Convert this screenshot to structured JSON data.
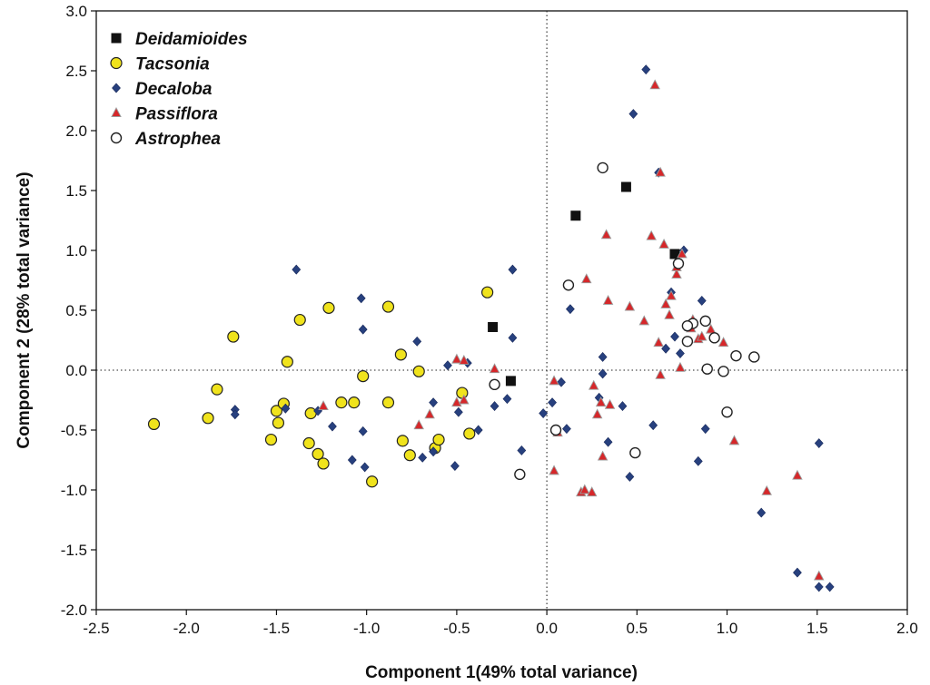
{
  "chart_data": {
    "type": "scatter",
    "xlabel": "Component 1(49% total variance)",
    "ylabel": "Component 2 (28% total variance)",
    "xlim": [
      -2.5,
      2.0
    ],
    "ylim": [
      -2.0,
      3.0
    ],
    "xticks": [
      "-2.5",
      "-2.0",
      "-1.5",
      "-1.0",
      "-0.5",
      "0.0",
      "0.5",
      "1.0",
      "1.5",
      "2.0"
    ],
    "yticks": [
      "-2.0",
      "-1.5",
      "-1.0",
      "-0.5",
      "0.0",
      "0.5",
      "1.0",
      "1.5",
      "2.0",
      "2.5",
      "3.0"
    ],
    "reference_lines": {
      "x": 0.0,
      "y": 0.0,
      "style": "dotted"
    },
    "legend_position": "top-left",
    "series": [
      {
        "name": "Deidamioides",
        "marker": "square",
        "color": "#111111",
        "points": [
          [
            0.16,
            1.29
          ],
          [
            0.44,
            1.53
          ],
          [
            0.71,
            0.97
          ],
          [
            -0.3,
            0.36
          ],
          [
            -0.2,
            -0.09
          ]
        ]
      },
      {
        "name": "Tacsonia",
        "marker": "circle",
        "color": "#f0e31c",
        "points": [
          [
            -2.18,
            -0.45
          ],
          [
            -1.88,
            -0.4
          ],
          [
            -1.83,
            -0.16
          ],
          [
            -1.74,
            0.28
          ],
          [
            -1.53,
            -0.58
          ],
          [
            -1.5,
            -0.34
          ],
          [
            -1.49,
            -0.44
          ],
          [
            -1.46,
            -0.28
          ],
          [
            -1.44,
            0.07
          ],
          [
            -1.37,
            0.42
          ],
          [
            -1.32,
            -0.61
          ],
          [
            -1.31,
            -0.36
          ],
          [
            -1.27,
            -0.7
          ],
          [
            -1.24,
            -0.78
          ],
          [
            -1.21,
            0.52
          ],
          [
            -1.14,
            -0.27
          ],
          [
            -1.07,
            -0.27
          ],
          [
            -1.02,
            -0.05
          ],
          [
            -0.97,
            -0.93
          ],
          [
            -0.88,
            0.53
          ],
          [
            -0.88,
            -0.27
          ],
          [
            -0.81,
            0.13
          ],
          [
            -0.8,
            -0.59
          ],
          [
            -0.76,
            -0.71
          ],
          [
            -0.71,
            -0.01
          ],
          [
            -0.62,
            -0.65
          ],
          [
            -0.6,
            -0.58
          ],
          [
            -0.47,
            -0.19
          ],
          [
            -0.43,
            -0.53
          ],
          [
            -0.33,
            0.65
          ]
        ]
      },
      {
        "name": "Decaloba",
        "marker": "diamond",
        "color": "#27407e",
        "points": [
          [
            -1.73,
            -0.33
          ],
          [
            -1.73,
            -0.37
          ],
          [
            -1.45,
            -0.32
          ],
          [
            -1.39,
            0.84
          ],
          [
            -1.27,
            -0.34
          ],
          [
            -1.19,
            -0.47
          ],
          [
            -1.08,
            -0.75
          ],
          [
            -1.03,
            0.6
          ],
          [
            -1.02,
            0.34
          ],
          [
            -1.02,
            -0.51
          ],
          [
            -1.01,
            -0.81
          ],
          [
            -0.72,
            0.24
          ],
          [
            -0.69,
            -0.73
          ],
          [
            -0.63,
            -0.68
          ],
          [
            -0.63,
            -0.27
          ],
          [
            -0.55,
            0.04
          ],
          [
            -0.51,
            -0.8
          ],
          [
            -0.49,
            -0.35
          ],
          [
            -0.44,
            0.06
          ],
          [
            -0.38,
            -0.5
          ],
          [
            -0.29,
            -0.3
          ],
          [
            -0.22,
            -0.24
          ],
          [
            -0.19,
            0.84
          ],
          [
            -0.19,
            0.27
          ],
          [
            -0.14,
            -0.67
          ],
          [
            -0.02,
            -0.36
          ],
          [
            0.03,
            -0.27
          ],
          [
            0.08,
            -0.1
          ],
          [
            0.11,
            -0.49
          ],
          [
            0.13,
            0.51
          ],
          [
            0.29,
            -0.23
          ],
          [
            0.31,
            0.11
          ],
          [
            0.31,
            -0.03
          ],
          [
            0.34,
            -0.6
          ],
          [
            0.42,
            -0.3
          ],
          [
            0.46,
            -0.89
          ],
          [
            0.48,
            2.14
          ],
          [
            0.55,
            2.51
          ],
          [
            0.59,
            -0.46
          ],
          [
            0.62,
            1.65
          ],
          [
            0.66,
            0.18
          ],
          [
            0.69,
            0.65
          ],
          [
            0.71,
            0.28
          ],
          [
            0.74,
            0.14
          ],
          [
            0.76,
            1.0
          ],
          [
            0.8,
            0.38
          ],
          [
            0.84,
            -0.76
          ],
          [
            0.86,
            0.58
          ],
          [
            0.88,
            -0.49
          ],
          [
            1.19,
            -1.19
          ],
          [
            1.39,
            -1.69
          ],
          [
            1.51,
            -1.81
          ],
          [
            1.51,
            -0.61
          ],
          [
            1.57,
            -1.81
          ]
        ]
      },
      {
        "name": "Passiflora",
        "marker": "triangle",
        "color": "#d6272a",
        "points": [
          [
            -1.24,
            -0.3
          ],
          [
            -0.71,
            -0.46
          ],
          [
            -0.65,
            -0.37
          ],
          [
            -0.5,
            0.09
          ],
          [
            -0.5,
            -0.27
          ],
          [
            -0.46,
            0.08
          ],
          [
            -0.46,
            -0.25
          ],
          [
            -0.29,
            0.01
          ],
          [
            0.04,
            -0.09
          ],
          [
            0.04,
            -0.84
          ],
          [
            0.06,
            -0.52
          ],
          [
            0.19,
            -1.02
          ],
          [
            0.21,
            -1.0
          ],
          [
            0.22,
            0.76
          ],
          [
            0.25,
            -1.02
          ],
          [
            0.26,
            -0.13
          ],
          [
            0.28,
            -0.37
          ],
          [
            0.3,
            -0.27
          ],
          [
            0.31,
            -0.72
          ],
          [
            0.33,
            1.13
          ],
          [
            0.34,
            0.58
          ],
          [
            0.35,
            -0.29
          ],
          [
            0.46,
            0.53
          ],
          [
            0.54,
            0.41
          ],
          [
            0.58,
            1.12
          ],
          [
            0.6,
            2.38
          ],
          [
            0.62,
            0.23
          ],
          [
            0.63,
            -0.04
          ],
          [
            0.63,
            1.65
          ],
          [
            0.65,
            1.05
          ],
          [
            0.66,
            0.55
          ],
          [
            0.68,
            0.46
          ],
          [
            0.69,
            0.62
          ],
          [
            0.72,
            0.8
          ],
          [
            0.72,
            0.86
          ],
          [
            0.74,
            0.02
          ],
          [
            0.75,
            0.97
          ],
          [
            0.79,
            0.36
          ],
          [
            0.8,
            0.35
          ],
          [
            0.81,
            0.42
          ],
          [
            0.84,
            0.26
          ],
          [
            0.86,
            0.28
          ],
          [
            0.91,
            0.34
          ],
          [
            0.98,
            0.23
          ],
          [
            1.04,
            -0.59
          ],
          [
            1.22,
            -1.01
          ],
          [
            1.39,
            -0.88
          ],
          [
            1.51,
            -1.72
          ]
        ]
      },
      {
        "name": "Astrophea",
        "marker": "open-circle",
        "color": "#ffffff",
        "points": [
          [
            0.31,
            1.69
          ],
          [
            0.73,
            0.89
          ],
          [
            0.12,
            0.71
          ],
          [
            0.88,
            0.41
          ],
          [
            0.81,
            0.39
          ],
          [
            0.78,
            0.37
          ],
          [
            0.78,
            0.24
          ],
          [
            0.93,
            0.27
          ],
          [
            0.89,
            0.01
          ],
          [
            0.98,
            -0.01
          ],
          [
            1.05,
            0.12
          ],
          [
            1.15,
            0.11
          ],
          [
            1.0,
            -0.35
          ],
          [
            0.05,
            -0.5
          ],
          [
            0.49,
            -0.69
          ],
          [
            -0.15,
            -0.87
          ],
          [
            -0.29,
            -0.12
          ]
        ]
      }
    ]
  }
}
